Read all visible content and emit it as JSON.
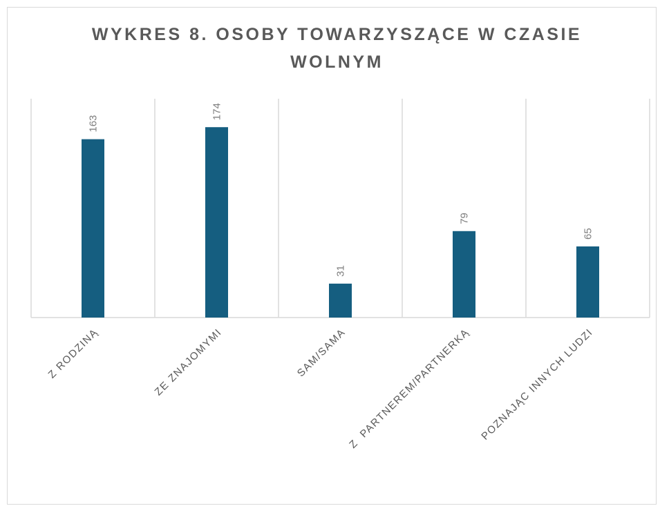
{
  "chart_data": {
    "type": "bar",
    "title": "WYKRES 8. OSOBY TOWARZYSZĄCE W CZASIE WOLNYM",
    "categories": [
      "Z RODZINĄ",
      "ZE ZNAJOMYMI",
      "SAM/SAMA",
      "Z  PARTNEREM/PARTNERKĄ",
      "POZNAJĄC INNYCH LUDZI"
    ],
    "values": [
      163,
      174,
      31,
      79,
      65
    ],
    "color": "#155e80",
    "ylim": [
      0,
      200
    ]
  }
}
